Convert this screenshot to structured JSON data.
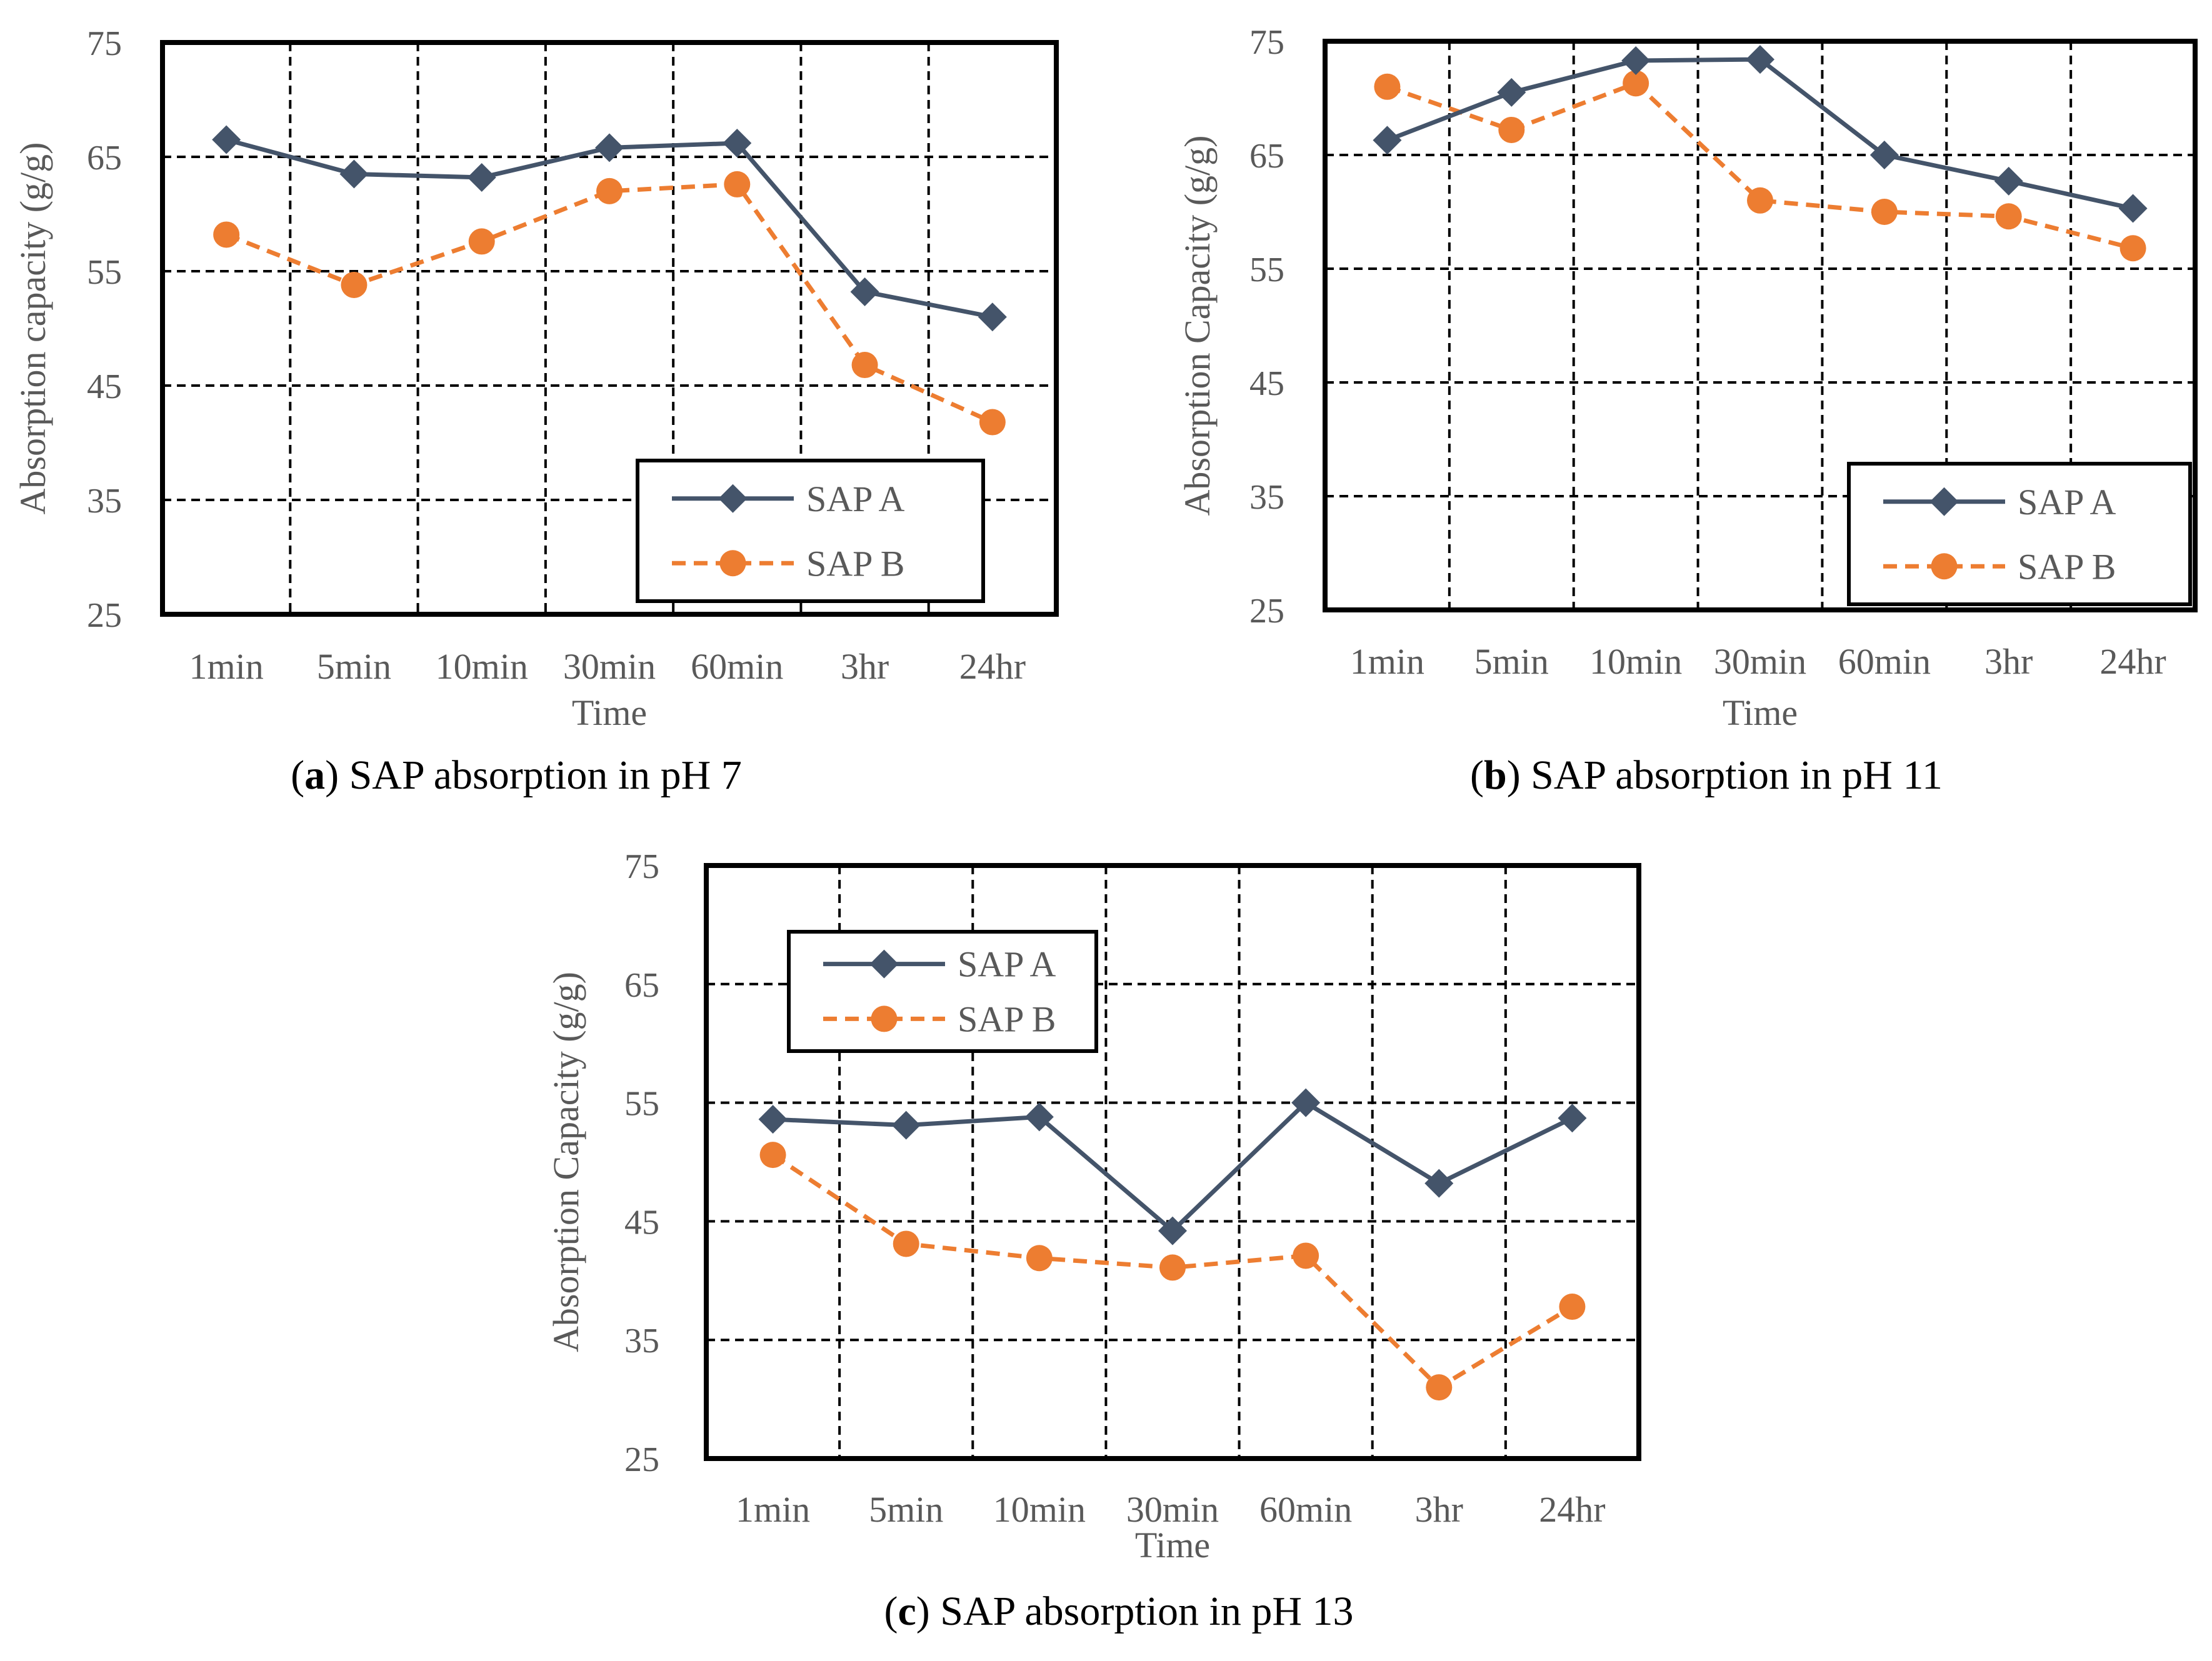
{
  "colors": {
    "sap_a": "#44546A",
    "sap_b": "#ED7D31",
    "axis_text": "#595959",
    "frame": "#000000"
  },
  "chart_data": [
    {
      "type": "line",
      "panel": "a",
      "caption_letter": "a",
      "caption_text": ") SAP absorption in pH 7",
      "categories": [
        "1min",
        "5min",
        "10min",
        "30min",
        "60min",
        "3hr",
        "24hr"
      ],
      "xlabel": "Time",
      "ylabel": "Absorption capacity (g/g)",
      "ylim": [
        25,
        75
      ],
      "yticks": [
        "25",
        "35",
        "45",
        "55",
        "65",
        "75"
      ],
      "grid": true,
      "legend_position": "bottom-right",
      "series": [
        {
          "name": "SAP A",
          "marker": "diamond",
          "dashed": false,
          "values": [
            66.5,
            63.5,
            63.2,
            65.8,
            66.2,
            53.2,
            51.0
          ]
        },
        {
          "name": "SAP B",
          "marker": "circle",
          "dashed": true,
          "values": [
            58.2,
            53.8,
            57.6,
            62.0,
            62.6,
            46.8,
            41.8
          ]
        }
      ]
    },
    {
      "type": "line",
      "panel": "b",
      "caption_letter": "b",
      "caption_text": ") SAP absorption in pH 11",
      "categories": [
        "1min",
        "5min",
        "10min",
        "30min",
        "60min",
        "3hr",
        "24hr"
      ],
      "xlabel": "Time",
      "ylabel": "Absorption Capacity (g/g)",
      "ylim": [
        25,
        75
      ],
      "yticks": [
        "25",
        "35",
        "45",
        "55",
        "65",
        "75"
      ],
      "grid": true,
      "legend_position": "bottom-right",
      "series": [
        {
          "name": "SAP A",
          "marker": "diamond",
          "dashed": false,
          "values": [
            66.3,
            70.5,
            73.3,
            73.4,
            65.0,
            62.7,
            60.3
          ]
        },
        {
          "name": "SAP B",
          "marker": "circle",
          "dashed": true,
          "values": [
            71.0,
            67.2,
            71.3,
            61.0,
            60.0,
            59.6,
            56.8
          ]
        }
      ]
    },
    {
      "type": "line",
      "panel": "c",
      "caption_letter": "c",
      "caption_text": ") SAP absorption in pH 13",
      "categories": [
        "1min",
        "5min",
        "10min",
        "30min",
        "60min",
        "3hr",
        "24hr"
      ],
      "xlabel": "Time",
      "ylabel": "Absorption Capacity (g/g)",
      "ylim": [
        25,
        75
      ],
      "yticks": [
        "25",
        "35",
        "45",
        "55",
        "65",
        "75"
      ],
      "grid": true,
      "legend_position": "top-left",
      "series": [
        {
          "name": "SAP A",
          "marker": "diamond",
          "dashed": false,
          "values": [
            53.6,
            53.1,
            53.8,
            44.2,
            55.0,
            48.2,
            53.7
          ]
        },
        {
          "name": "SAP B",
          "marker": "circle",
          "dashed": true,
          "values": [
            50.6,
            43.1,
            41.9,
            41.1,
            42.1,
            31.0,
            37.8
          ]
        }
      ]
    }
  ]
}
